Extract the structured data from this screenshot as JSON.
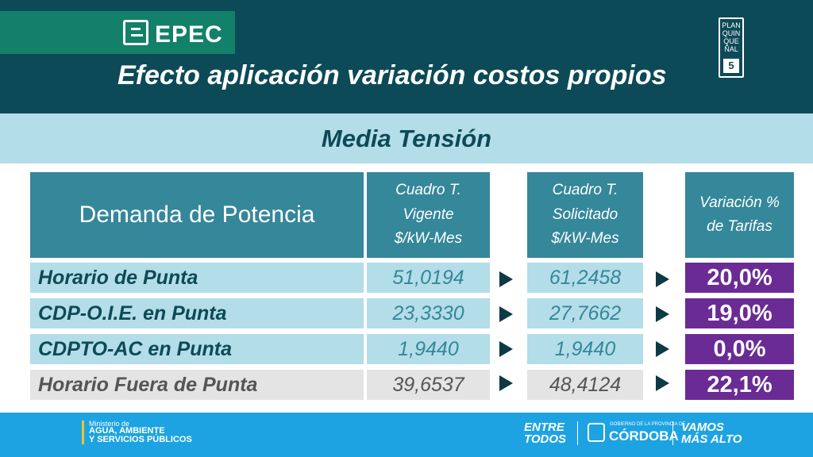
{
  "header": {
    "logo_text": "EPEC",
    "title": "Efecto aplicación variación costos propios",
    "badge": {
      "text": "PLAN\nQUIN\nQUE\nÑAL",
      "number": "5"
    }
  },
  "section_title": "Media Tensión",
  "table": {
    "headers": {
      "concept": "Demanda de Potencia",
      "vigente": "Cuadro T.\nVigente\n$/kW-Mes",
      "solicitado": "Cuadro T.\nSolicitado\n$/kW-Mes",
      "variacion": "Variación %\nde Tarifas"
    },
    "rows": [
      {
        "label": "Horario de Punta",
        "vigente": "51,0194",
        "solicitado": "61,2458",
        "variacion": "20,0%"
      },
      {
        "label": "CDP-O.I.E. en Punta",
        "vigente": "23,3330",
        "solicitado": "27,7662",
        "variacion": "19,0%"
      },
      {
        "label": "CDPTO-AC en Punta",
        "vigente": "1,9440",
        "solicitado": "1,9440",
        "variacion": "0,0%"
      },
      {
        "label": "Horario Fuera de Punta",
        "vigente": "39,6537",
        "solicitado": "48,4124",
        "variacion": "22,1%"
      }
    ]
  },
  "footer": {
    "ministerio_small": "Ministerio de",
    "ministerio_big": "AGUA, AMBIENTE\nY SERVICIOS PÚBLICOS",
    "entre_todos": "ENTRE\nTODOS",
    "gobierno": "GOBIERNO DE LA PROVINCIA DE",
    "cordoba": "CÓRDOBA",
    "vamos": "VAMOS\nMÁS ALTO"
  },
  "colors": {
    "header_bg": "#0d4a57",
    "logo_green": "#13806a",
    "band_light_blue": "#b3dde8",
    "header_cell_teal": "#35879a",
    "variation_purple": "#6a2b94",
    "row_gray": "#e4e4e4",
    "footer_blue": "#1da3e1"
  }
}
